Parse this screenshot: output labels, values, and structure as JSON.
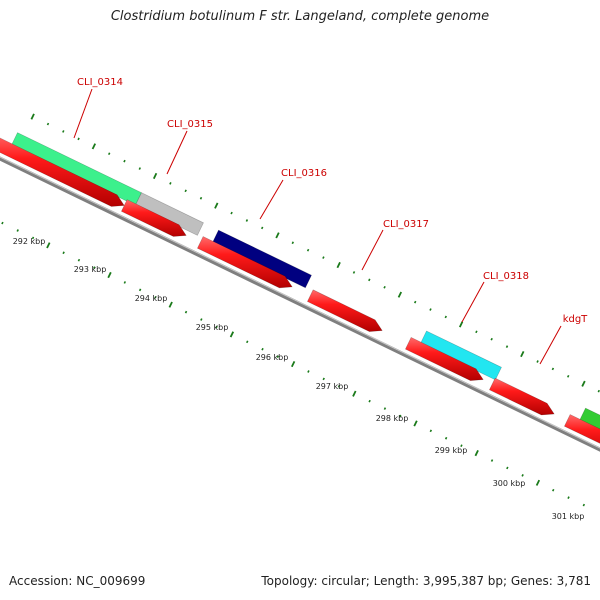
{
  "header": {
    "title": "Clostridium botulinum F str. Langeland, complete genome"
  },
  "footer": {
    "accession": "Accession: NC_009699",
    "summary": "Topology: circular; Length: 3,995,387 bp; Genes: 3,781"
  },
  "colors": {
    "backbone": "#7f7f7f",
    "cds_arrow": "#e60000",
    "gene_label": "#cc0000",
    "tick_mark": "#1a7a1a"
  },
  "gene_labels": [
    "CLI_0314",
    "CLI_0315",
    "CLI_0316",
    "CLI_0317",
    "CLI_0318",
    "kdgT"
  ],
  "scale_labels": [
    "292 kbp",
    "293 kbp",
    "294 kbp",
    "295 kbp",
    "296 kbp",
    "297 kbp",
    "298 kbp",
    "299 kbp",
    "300 kbp",
    "301 kbp"
  ],
  "feature_colors": [
    "#3cf08c",
    "#bfbfbf",
    "#000080",
    "#22e6f0",
    "#33cc33"
  ]
}
